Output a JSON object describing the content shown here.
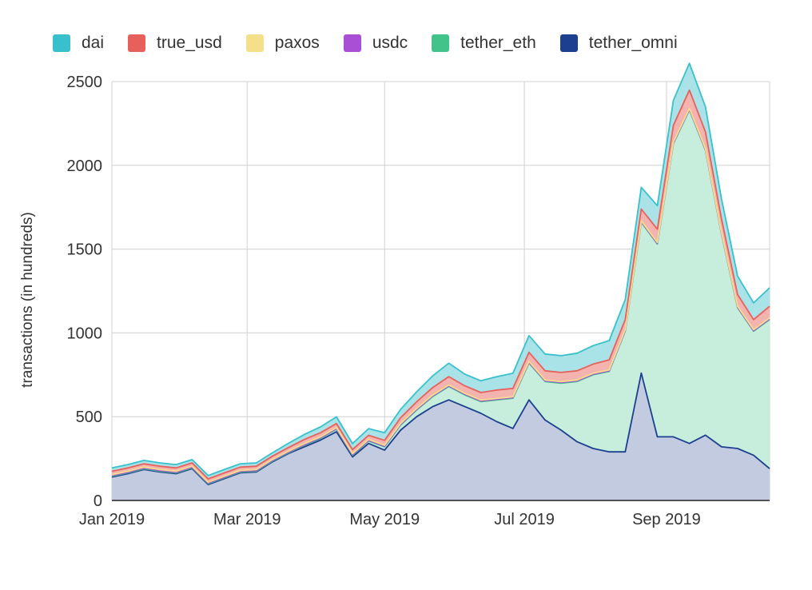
{
  "chart_data": {
    "type": "area",
    "title": "",
    "xlabel": "",
    "ylabel": "transactions (in hundreds)",
    "ylim": [
      0,
      2500
    ],
    "yticks": [
      0,
      500,
      1000,
      1500,
      2000,
      2500
    ],
    "xlim": [
      0,
      41
    ],
    "xticks": [
      {
        "label": "Jan 2019",
        "x": 0
      },
      {
        "label": "Mar 2019",
        "x": 8.43
      },
      {
        "label": "May 2019",
        "x": 17
      },
      {
        "label": "Jul 2019",
        "x": 25.71
      },
      {
        "label": "Sep 2019",
        "x": 34.57
      }
    ],
    "x_unit": "weeks since Jan 1 2019",
    "x": [
      0,
      1,
      2,
      3,
      4,
      5,
      6,
      7,
      8,
      9,
      10,
      11,
      12,
      13,
      14,
      15,
      16,
      17,
      18,
      19,
      20,
      21,
      22,
      23,
      24,
      25,
      26,
      27,
      28,
      29,
      30,
      31,
      32,
      33,
      34,
      35,
      36,
      37,
      38,
      39,
      40,
      41
    ],
    "series": [
      {
        "name": "tether_omni",
        "color": "#1c3f8f",
        "fill": "#c3cbe0",
        "values": [
          140,
          160,
          185,
          170,
          160,
          190,
          95,
          130,
          165,
          170,
          230,
          280,
          320,
          360,
          410,
          260,
          340,
          300,
          420,
          500,
          560,
          600,
          560,
          520,
          470,
          430,
          600,
          480,
          420,
          350,
          310,
          290,
          290,
          760,
          380,
          380,
          340,
          390,
          320,
          310,
          270,
          190
        ]
      },
      {
        "name": "tether_eth",
        "color": "#41c38a",
        "fill": "#c7eedc",
        "values": [
          5,
          5,
          5,
          5,
          5,
          5,
          5,
          5,
          5,
          5,
          5,
          5,
          10,
          10,
          15,
          10,
          15,
          20,
          30,
          40,
          60,
          80,
          70,
          70,
          130,
          180,
          220,
          230,
          280,
          360,
          440,
          480,
          720,
          900,
          1150,
          1750,
          1990,
          1700,
          1270,
          840,
          740,
          890
        ]
      },
      {
        "name": "usdc",
        "color": "#a94fd6",
        "fill": "#d9b0ec",
        "values": [
          4,
          4,
          4,
          4,
          4,
          4,
          4,
          4,
          4,
          4,
          4,
          4,
          4,
          4,
          4,
          4,
          4,
          4,
          4,
          4,
          4,
          4,
          4,
          4,
          4,
          4,
          4,
          4,
          4,
          4,
          4,
          4,
          4,
          4,
          4,
          4,
          4,
          4,
          4,
          4,
          4,
          4
        ]
      },
      {
        "name": "paxos",
        "color": "#f6df8b",
        "fill": "#f8e8a8",
        "values": [
          5,
          5,
          5,
          5,
          5,
          5,
          5,
          5,
          5,
          5,
          5,
          5,
          5,
          5,
          5,
          5,
          5,
          5,
          5,
          5,
          5,
          5,
          5,
          5,
          5,
          5,
          5,
          5,
          5,
          5,
          5,
          5,
          5,
          5,
          5,
          5,
          5,
          5,
          5,
          5,
          5,
          5
        ]
      },
      {
        "name": "true_usd",
        "color": "#e8605c",
        "fill": "#f3b3ae",
        "values": [
          20,
          20,
          20,
          20,
          20,
          20,
          20,
          20,
          20,
          20,
          20,
          22,
          25,
          25,
          25,
          25,
          25,
          30,
          35,
          40,
          45,
          50,
          45,
          45,
          50,
          50,
          55,
          55,
          55,
          55,
          55,
          60,
          60,
          70,
          80,
          100,
          110,
          100,
          80,
          70,
          60,
          70
        ]
      },
      {
        "name": "dai",
        "color": "#38c1cd",
        "fill": "#a9e2e7",
        "values": [
          20,
          20,
          20,
          20,
          20,
          20,
          20,
          20,
          20,
          20,
          20,
          25,
          30,
          35,
          40,
          35,
          40,
          45,
          50,
          60,
          70,
          80,
          70,
          70,
          80,
          90,
          100,
          100,
          100,
          105,
          110,
          115,
          120,
          130,
          140,
          150,
          160,
          150,
          120,
          110,
          100,
          110
        ]
      }
    ],
    "grid": true,
    "legend": "top"
  }
}
